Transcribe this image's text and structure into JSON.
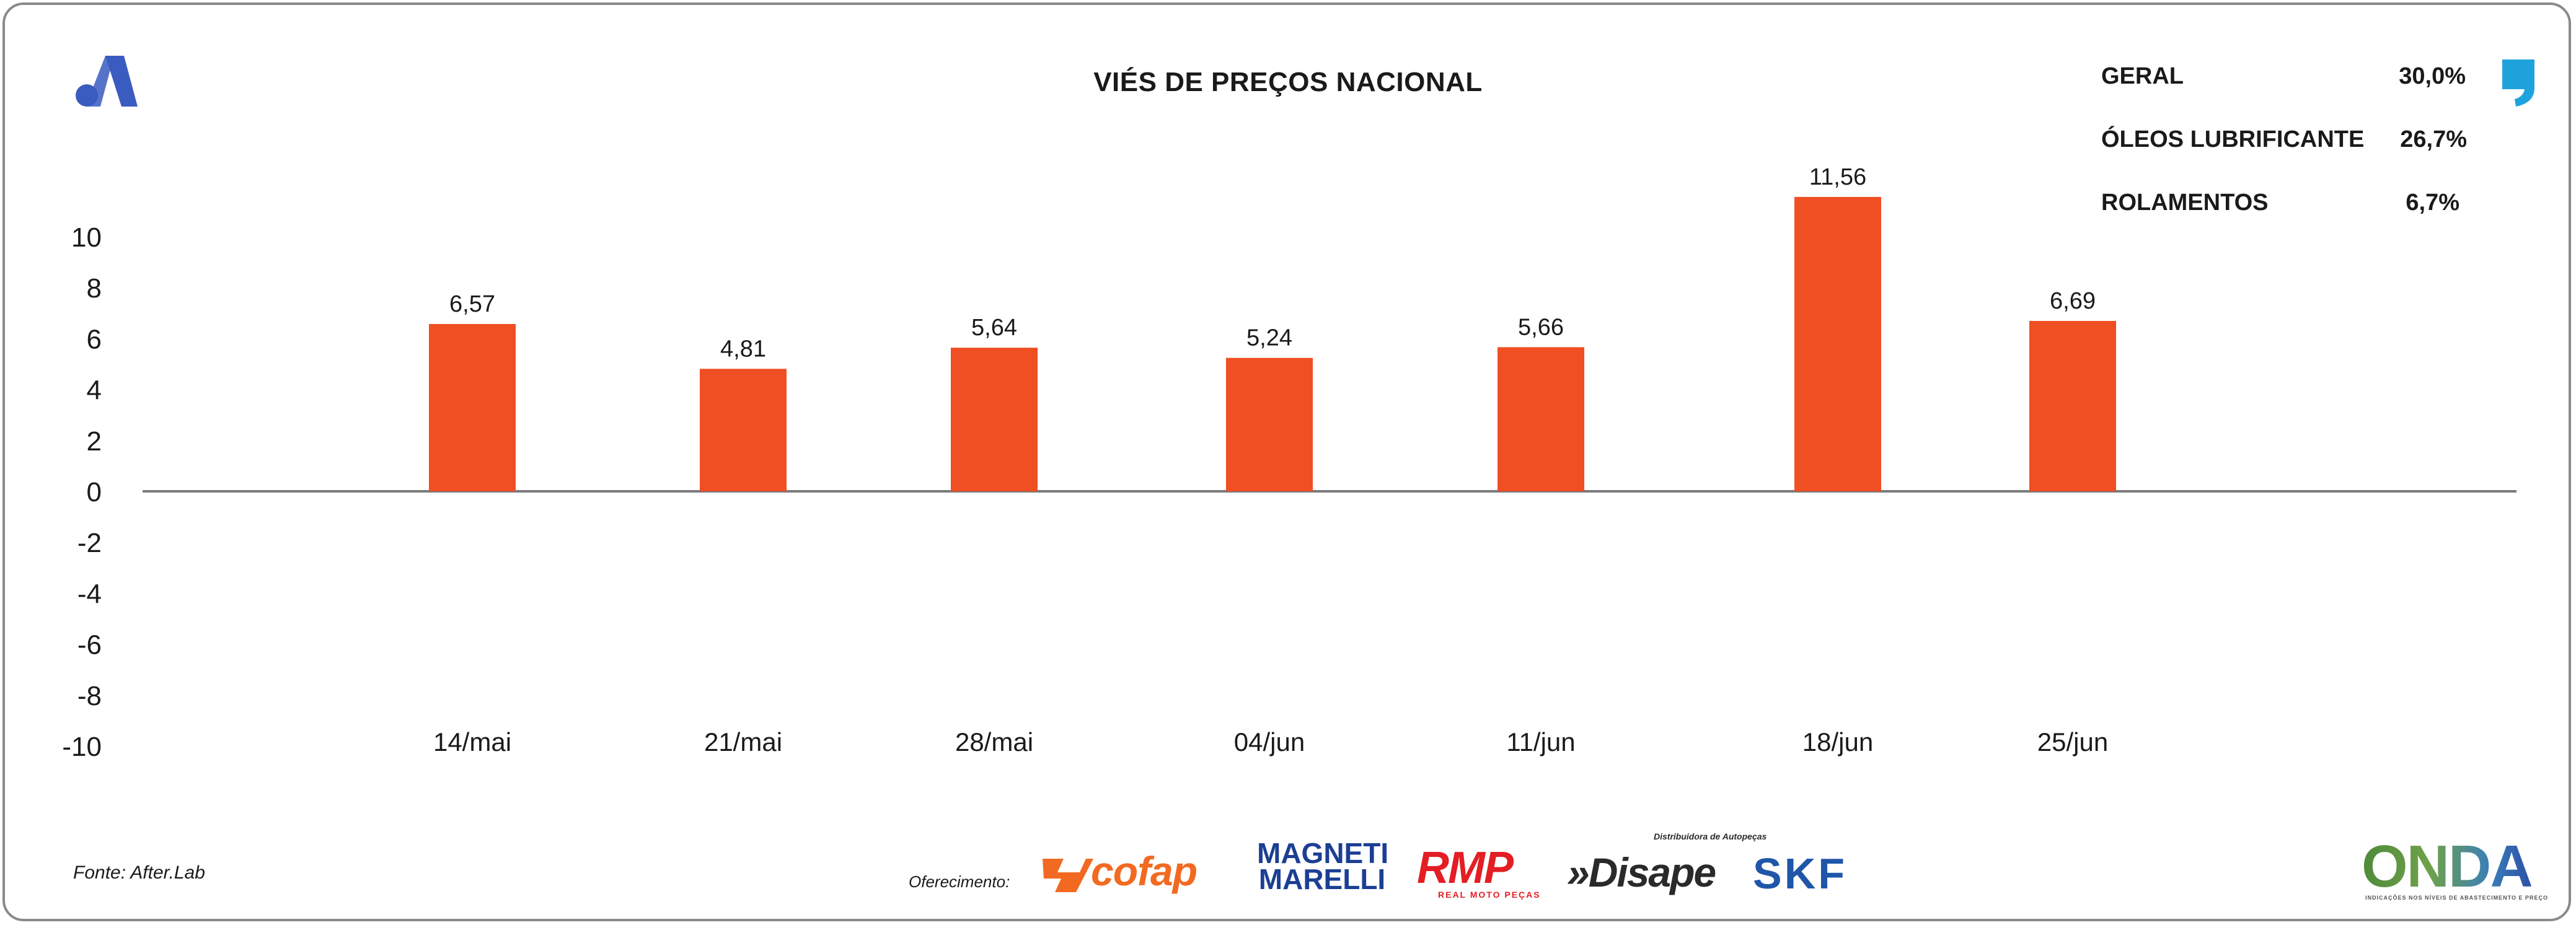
{
  "header": {
    "title": "VIÉS DE PREÇOS NACIONAL"
  },
  "stats": [
    {
      "label": "GERAL",
      "value": "30,0%"
    },
    {
      "label": "ÓLEOS LUBRIFICANTE",
      "value": "26,7%"
    },
    {
      "label": "ROLAMENTOS",
      "value": "6,7%"
    }
  ],
  "colors": {
    "bar": "#f04e23",
    "brand_blue": "#3a5bbf",
    "quote_cyan": "#1fa3dc"
  },
  "icons": {
    "brand_logo": "after-logo-icon",
    "quote": "quote-icon"
  },
  "chart_data": {
    "type": "bar",
    "categories": [
      "14/mai",
      "21/mai",
      "28/mai",
      "04/jun",
      "11/jun",
      "18/jun",
      "25/jun"
    ],
    "values": [
      6.57,
      4.81,
      5.64,
      5.24,
      5.66,
      11.56,
      6.69
    ],
    "data_labels": [
      "6,57",
      "4,81",
      "5,64",
      "5,24",
      "5,66",
      "11,56",
      "6,69"
    ],
    "ylim": [
      -10,
      10
    ],
    "yticks": [
      10,
      8,
      6,
      4,
      2,
      0,
      -2,
      -4,
      -6,
      -8,
      -10
    ],
    "title": "",
    "xlabel": "",
    "ylabel": "",
    "grid": false,
    "legend": "none"
  },
  "footer": {
    "source": "Fonte: After.Lab",
    "sponsor_label": "Oferecimento:",
    "sponsors": {
      "cofap": "cofap",
      "magneti_line1": "MAGNETI",
      "magneti_line2": "MARELLI",
      "rmp": "RMP",
      "rmp_sub": "REAL MOTO PEÇAS",
      "disape": "»Disape",
      "disape_sub": "Distribuidora de Autopeças",
      "skf": "SKF",
      "onda": "ONDA",
      "onda_sub": "INDICAÇÕES NOS NÍVEIS DE ABASTECIMENTO E PREÇO"
    }
  }
}
